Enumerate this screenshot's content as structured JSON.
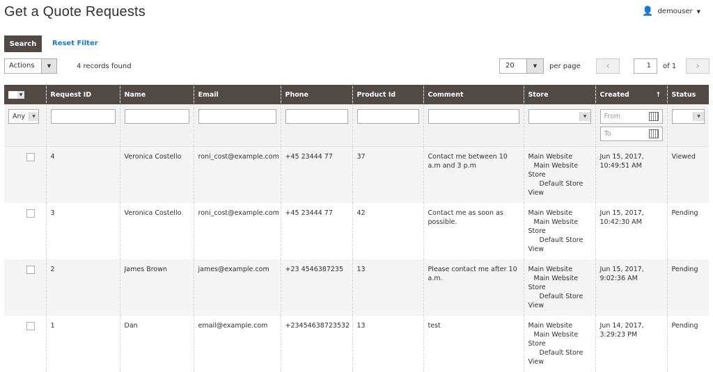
{
  "page": {
    "title": "Get a Quote Requests",
    "user": "demouser"
  },
  "toolbar": {
    "search": "Search",
    "reset": "Reset Filter",
    "actions": "Actions",
    "records": "4 records found",
    "per_page_value": "20",
    "per_page_label": "per page",
    "page": "1",
    "of": "of 1"
  },
  "columns": [
    "Request ID",
    "Name",
    "Email",
    "Phone",
    "Product Id",
    "Comment",
    "Store",
    "Created",
    "Status"
  ],
  "filters": {
    "any": "Any",
    "from": "From",
    "to": "To"
  },
  "store_lines": [
    "Main Website",
    "Main Website",
    "Store",
    "Default Store",
    "View"
  ],
  "rows": [
    {
      "id": "4",
      "name": "Veronica Costello",
      "email": "roni_cost@example.com",
      "phone": "+45 23444 77",
      "product": "37",
      "comment": "Contact me between 10 a.m and 3 p.m",
      "created": "Jun 15, 2017, 10:49:51 AM",
      "status": "Viewed"
    },
    {
      "id": "3",
      "name": "Veronica Costello",
      "email": "roni_cost@example.com",
      "phone": "+45 23444 77",
      "product": "42",
      "comment": "Contact me as soon as possible.",
      "created": "Jun 15, 2017, 10:42:30 AM",
      "status": "Pending"
    },
    {
      "id": "2",
      "name": "James Brown",
      "email": "james@example.com",
      "phone": "+23 4546387235",
      "product": "13",
      "comment": "Please contact me after 10 a.m.",
      "created": "Jun 15, 2017, 9:02:36 AM",
      "status": "Pending"
    },
    {
      "id": "1",
      "name": "Dan",
      "email": "email@example.com",
      "phone": "+23454638723532",
      "product": "13",
      "comment": "test",
      "created": "Jun 14, 2017, 3:29:23 PM",
      "status": "Pending"
    }
  ]
}
